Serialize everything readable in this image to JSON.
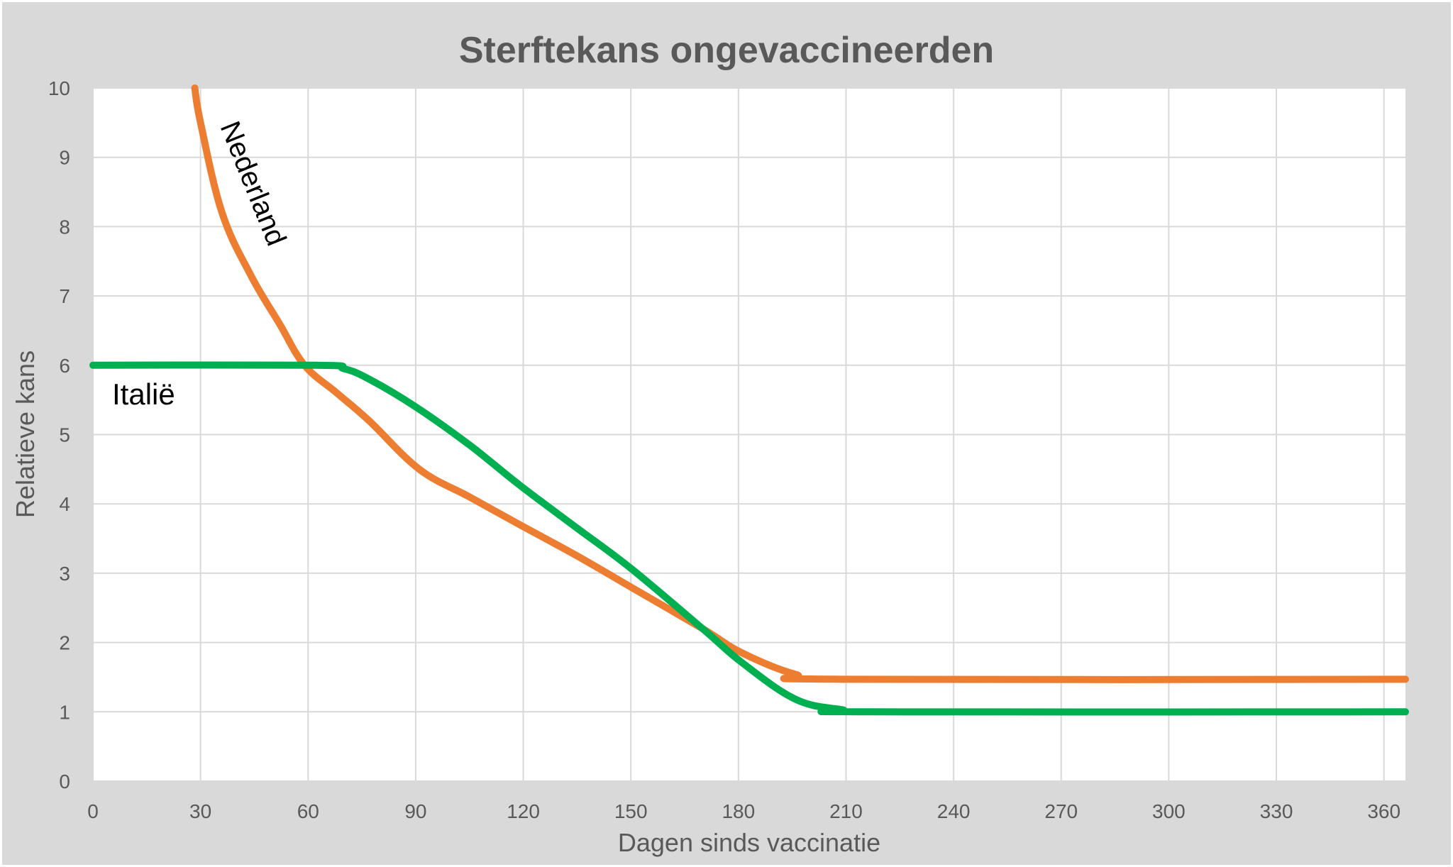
{
  "chart_data": {
    "type": "line",
    "title": "Sterftekans ongevaccineerden",
    "xlabel": "Dagen sinds vaccinatie",
    "ylabel": "Relatieve kans",
    "xlim": [
      0,
      366
    ],
    "ylim": [
      0,
      10
    ],
    "xticks": [
      0,
      30,
      60,
      90,
      120,
      150,
      180,
      210,
      240,
      270,
      300,
      330,
      360
    ],
    "yticks": [
      0,
      1,
      2,
      3,
      4,
      5,
      6,
      7,
      8,
      9,
      10
    ],
    "grid": true,
    "legend": "none",
    "colors": {
      "background": "#d9d9d9",
      "plot": "#ffffff",
      "grid": "#d9d9d9",
      "text": "#595959"
    },
    "series": [
      {
        "name": "Nederland",
        "color": "#ed7d31",
        "x": [
          28.4,
          30,
          36,
          44,
          52,
          59,
          68,
          77,
          91,
          105,
          119,
          135,
          150,
          170,
          181,
          196,
          209,
          366
        ],
        "y": [
          10,
          9.5,
          8.2,
          7.3,
          6.6,
          6.0,
          5.6,
          5.2,
          4.5,
          4.1,
          3.7,
          3.25,
          2.8,
          2.2,
          1.85,
          1.54,
          1.47,
          1.47
        ]
      },
      {
        "name": "Italië",
        "color": "#00b050",
        "x": [
          0,
          62,
          70,
          77,
          90,
          105,
          119,
          135,
          150,
          170,
          181,
          196,
          209,
          217,
          366
        ],
        "y": [
          6,
          6,
          5.95,
          5.8,
          5.4,
          4.85,
          4.27,
          3.65,
          3.07,
          2.2,
          1.71,
          1.18,
          1.03,
          1.0,
          1.0
        ]
      }
    ]
  }
}
